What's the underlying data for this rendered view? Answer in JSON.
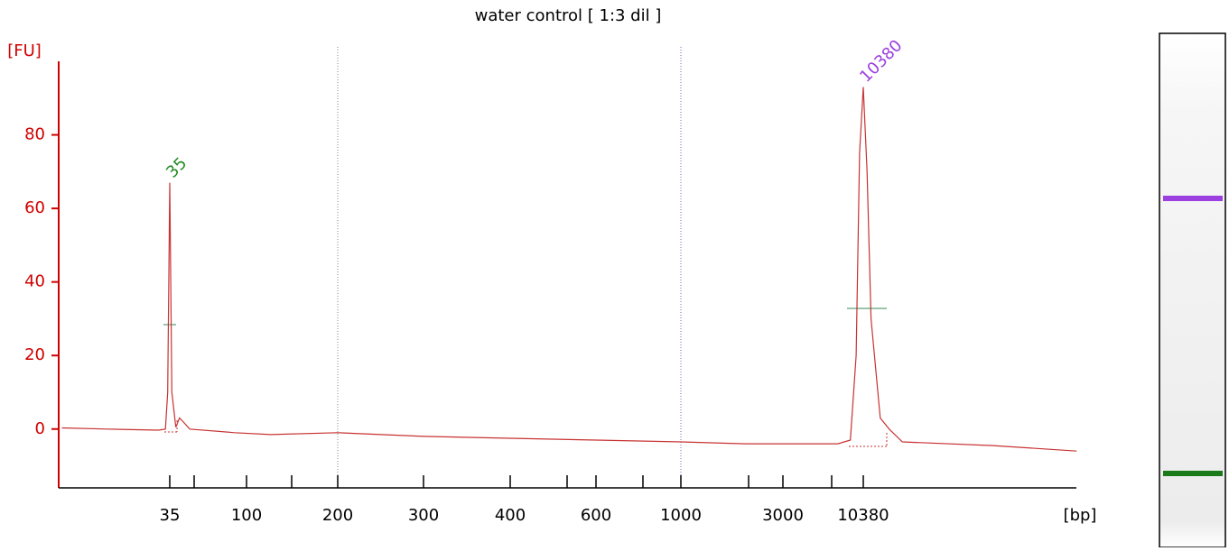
{
  "chart_data": {
    "type": "line",
    "title": "water control  [ 1:3 dil ]",
    "y_label": "[FU]",
    "x_label": "[bp]",
    "x_scale": "log",
    "x": [
      8,
      15,
      30,
      33,
      34,
      35,
      36,
      38,
      40,
      42,
      46,
      85,
      120,
      200,
      300,
      400,
      600,
      1000,
      2000,
      7000,
      8500,
      9300,
      9800,
      10380,
      11000,
      11700,
      13500,
      15500,
      19000,
      77000,
      280000
    ],
    "values": [
      0.3,
      0,
      -0.3,
      0,
      10,
      67,
      10,
      0.5,
      3,
      2,
      0,
      -1,
      -1.5,
      -1,
      -2,
      -2.5,
      -3,
      -3.5,
      -4,
      -4,
      -3,
      20,
      75,
      93,
      70,
      30,
      3,
      0,
      -3.5,
      -4.5,
      -6
    ],
    "color": "#c83232",
    "ylim": [
      -16,
      100
    ],
    "yticks": [
      0,
      20,
      40,
      60,
      80
    ],
    "xticks": [
      35,
      100,
      200,
      300,
      400,
      600,
      1000,
      3000,
      10380
    ],
    "annotations": [
      {
        "text": "35",
        "x": 35,
        "color": "#228b22"
      },
      {
        "text": "10380",
        "x": 10380,
        "color": "#9b3fe0"
      }
    ]
  }
}
